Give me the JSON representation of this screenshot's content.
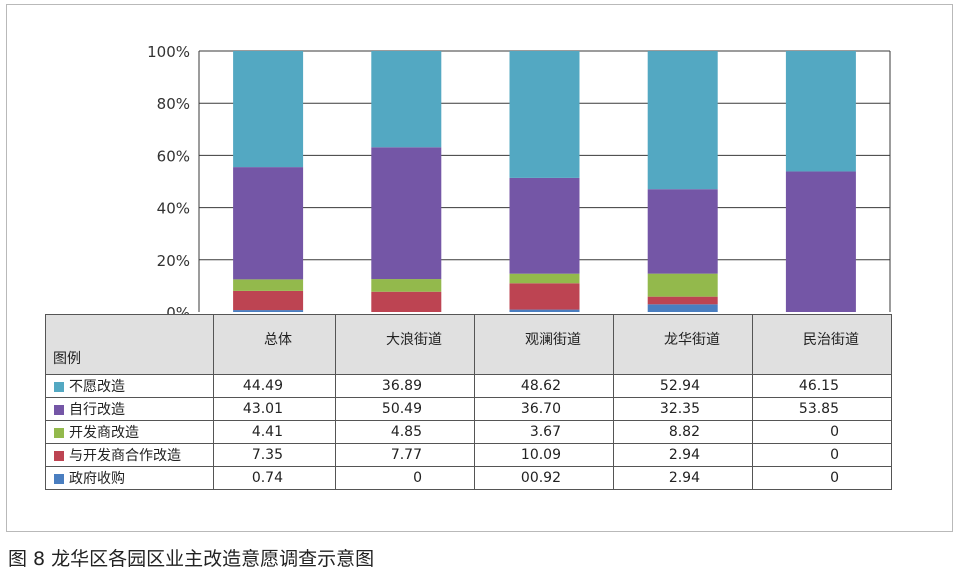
{
  "chart_data": {
    "type": "bar",
    "stacked": true,
    "percent": true,
    "categories": [
      "总体",
      "大浪街道",
      "观澜街道",
      "龙华街道",
      "民治街道"
    ],
    "ylim": [
      0,
      100
    ],
    "yticks": [
      "0%",
      "20%",
      "40%",
      "60%",
      "80%",
      "100%"
    ],
    "grid": true,
    "legend_title": "图例",
    "legend_placement": "table-left",
    "series": [
      {
        "name": "政府收购",
        "color": "#4a7ec0",
        "values": [
          0.74,
          0,
          0.92,
          2.94,
          0
        ],
        "labels": [
          "0.74",
          "0",
          "00.92",
          "2.94",
          "0"
        ]
      },
      {
        "name": "与开发商合作改造",
        "color": "#bd4452",
        "values": [
          7.35,
          7.77,
          10.09,
          2.94,
          0
        ],
        "labels": [
          "7.35",
          "7.77",
          "10.09",
          "2.94",
          "0"
        ]
      },
      {
        "name": "开发商改造",
        "color": "#93b94c",
        "values": [
          4.41,
          4.85,
          3.67,
          8.82,
          0
        ],
        "labels": [
          "4.41",
          "4.85",
          "3.67",
          "8.82",
          "0"
        ]
      },
      {
        "name": "自行改造",
        "color": "#7456a6",
        "values": [
          43.01,
          50.49,
          36.7,
          32.35,
          53.85
        ],
        "labels": [
          "43.01",
          "50.49",
          "36.70",
          "32.35",
          "53.85"
        ]
      },
      {
        "name": "不愿改造",
        "color": "#53a8c2",
        "values": [
          44.49,
          36.89,
          48.62,
          52.94,
          46.15
        ],
        "labels": [
          "44.49",
          "36.89",
          "48.62",
          "52.94",
          "46.15"
        ]
      }
    ],
    "table_order": [
      "不愿改造",
      "自行改造",
      "开发商改造",
      "与开发商合作改造",
      "政府收购"
    ]
  },
  "caption": "图 8  龙华区各园区业主改造意愿调查示意图"
}
